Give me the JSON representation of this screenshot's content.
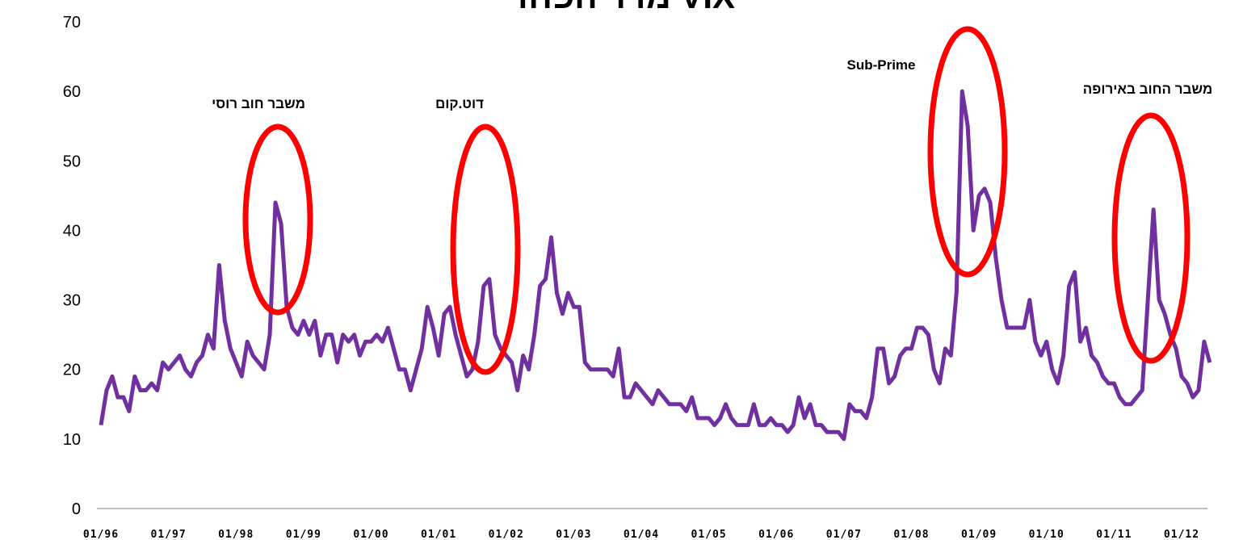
{
  "chart_data": {
    "type": "line",
    "title": "מדד הפחד VIX",
    "categories": [
      "01/96",
      null,
      null,
      null,
      null,
      null,
      null,
      null,
      null,
      null,
      null,
      null,
      "01/97",
      null,
      null,
      null,
      null,
      null,
      null,
      null,
      null,
      null,
      null,
      null,
      "01/98",
      null,
      null,
      null,
      null,
      null,
      null,
      null,
      null,
      null,
      null,
      null,
      "01/99",
      null,
      null,
      null,
      null,
      null,
      null,
      null,
      null,
      null,
      null,
      null,
      "01/00",
      null,
      null,
      null,
      null,
      null,
      null,
      null,
      null,
      null,
      null,
      null,
      "01/01",
      null,
      null,
      null,
      null,
      null,
      null,
      null,
      null,
      null,
      null,
      null,
      "01/02",
      null,
      null,
      null,
      null,
      null,
      null,
      null,
      null,
      null,
      null,
      null,
      "01/03",
      null,
      null,
      null,
      null,
      null,
      null,
      null,
      null,
      null,
      null,
      null,
      "01/04",
      null,
      null,
      null,
      null,
      null,
      null,
      null,
      null,
      null,
      null,
      null,
      "01/05",
      null,
      null,
      null,
      null,
      null,
      null,
      null,
      null,
      null,
      null,
      null,
      "01/06",
      null,
      null,
      null,
      null,
      null,
      null,
      null,
      null,
      null,
      null,
      null,
      "01/07",
      null,
      null,
      null,
      null,
      null,
      null,
      null,
      null,
      null,
      null,
      null,
      "01/08",
      null,
      null,
      null,
      null,
      null,
      null,
      null,
      null,
      null,
      null,
      null,
      "01/09",
      null,
      null,
      null,
      null,
      null,
      null,
      null,
      null,
      null,
      null,
      null,
      "01/10",
      null,
      null,
      null,
      null,
      null,
      null,
      null,
      null,
      null,
      null,
      null,
      "01/11",
      null,
      null,
      null,
      null,
      null,
      null,
      null,
      null,
      null,
      null,
      null,
      "01/12",
      null,
      null,
      null,
      null,
      null
    ],
    "series": [
      {
        "name": "VIX",
        "color": "#7030a0",
        "values": [
          12,
          17,
          19,
          16,
          16,
          14,
          19,
          17,
          17,
          18,
          17,
          21,
          20,
          21,
          22,
          20,
          19,
          21,
          22,
          25,
          23,
          35,
          27,
          23,
          21,
          19,
          24,
          22,
          21,
          20,
          25,
          44,
          41,
          29,
          26,
          25,
          27,
          25,
          27,
          22,
          25,
          25,
          21,
          25,
          24,
          25,
          22,
          24,
          24,
          25,
          24,
          26,
          23,
          20,
          20,
          17,
          20,
          23,
          29,
          26,
          22,
          28,
          29,
          25,
          22,
          19,
          20,
          24,
          32,
          33,
          25,
          23,
          22,
          21,
          17,
          22,
          20,
          25,
          32,
          33,
          39,
          31,
          28,
          31,
          29,
          29,
          21,
          20,
          20,
          20,
          20,
          19,
          23,
          16,
          16,
          18,
          17,
          16,
          15,
          17,
          16,
          15,
          15,
          15,
          14,
          16,
          13,
          13,
          13,
          12,
          13,
          15,
          13,
          12,
          12,
          12,
          15,
          12,
          12,
          13,
          12,
          12,
          11,
          12,
          16,
          13,
          15,
          12,
          12,
          11,
          11,
          11,
          10,
          15,
          14,
          14,
          13,
          16,
          23,
          23,
          18,
          19,
          22,
          23,
          23,
          26,
          26,
          25,
          20,
          18,
          23,
          22,
          31,
          60,
          55,
          40,
          45,
          46,
          44,
          36,
          30,
          26,
          26,
          26,
          26,
          30,
          24,
          22,
          24,
          20,
          18,
          22,
          32,
          34,
          24,
          26,
          22,
          21,
          19,
          18,
          18,
          16,
          15,
          15,
          16,
          17,
          30,
          43,
          30,
          28,
          25,
          23,
          19,
          18,
          16,
          17,
          24,
          21
        ]
      }
    ],
    "ylim": [
      0,
      70
    ],
    "yticks": [
      0,
      10,
      20,
      30,
      40,
      50,
      60,
      70
    ],
    "annotations": [
      {
        "text": "משבר חוב רוסי"
      },
      {
        "text": "דוט.קום"
      },
      {
        "text": "Sub-Prime"
      },
      {
        "text": "משבר החוב באירופה"
      }
    ]
  }
}
